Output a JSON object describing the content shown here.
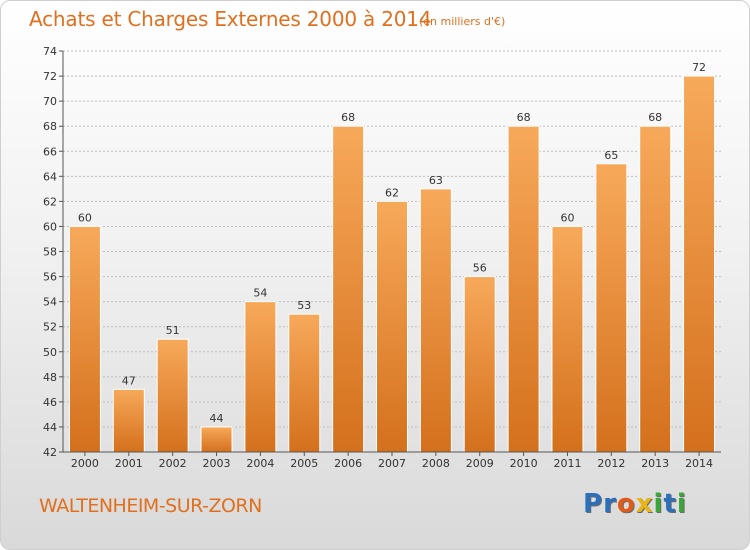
{
  "header": {
    "title": "Achats et Charges Externes 2000 à 2014",
    "subtitle": "(en milliers d'€)"
  },
  "footer": {
    "commune": "WALTENHEIM-SUR-ZORN",
    "logo_letters": [
      {
        "char": "P",
        "color": "#2d6fb8"
      },
      {
        "char": "r",
        "color": "#2d6fb8"
      },
      {
        "char": "o",
        "color": "#e05a1a"
      },
      {
        "char": "x",
        "color": "#e8b417"
      },
      {
        "char": "i",
        "color": "#3aa63a"
      },
      {
        "char": "t",
        "color": "#2d6fb8"
      },
      {
        "char": "i",
        "color": "#3aa63a"
      }
    ]
  },
  "chart_data": {
    "type": "bar",
    "categories": [
      "2000",
      "2001",
      "2002",
      "2003",
      "2004",
      "2005",
      "2006",
      "2007",
      "2008",
      "2009",
      "2010",
      "2011",
      "2012",
      "2013",
      "2014"
    ],
    "values": [
      60,
      47,
      51,
      44,
      54,
      53,
      68,
      62,
      63,
      56,
      68,
      60,
      65,
      68,
      72
    ],
    "ylim": [
      42,
      74
    ],
    "yticks": [
      42,
      44,
      46,
      48,
      50,
      52,
      54,
      56,
      58,
      60,
      62,
      64,
      66,
      68,
      70,
      72,
      74
    ],
    "grid": true,
    "legend": "none",
    "bar_color_top": "#f7a95a",
    "bar_color_bottom": "#d4701c"
  }
}
